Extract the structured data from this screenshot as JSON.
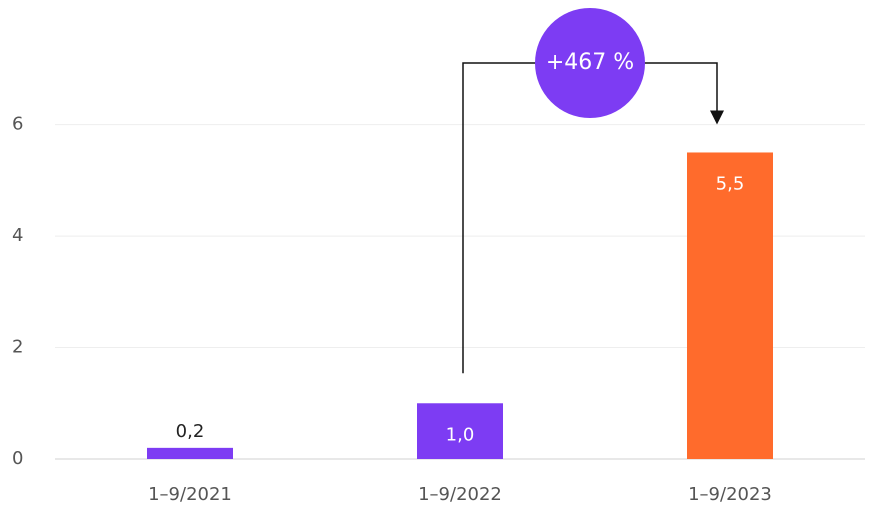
{
  "chart_data": {
    "type": "bar",
    "categories": [
      "1–9/2021",
      "1–9/2022",
      "1–9/2023"
    ],
    "values": [
      0.2,
      1.0,
      5.5
    ],
    "value_labels": [
      "0,2",
      "1,0",
      "5,5"
    ],
    "colors": [
      "#7d3cf3",
      "#7d3cf3",
      "#ff6b2c"
    ],
    "ylim": [
      0,
      8.2
    ],
    "yticks": [
      0,
      2,
      4,
      6
    ],
    "grid": true,
    "annotation": "+467 %"
  }
}
